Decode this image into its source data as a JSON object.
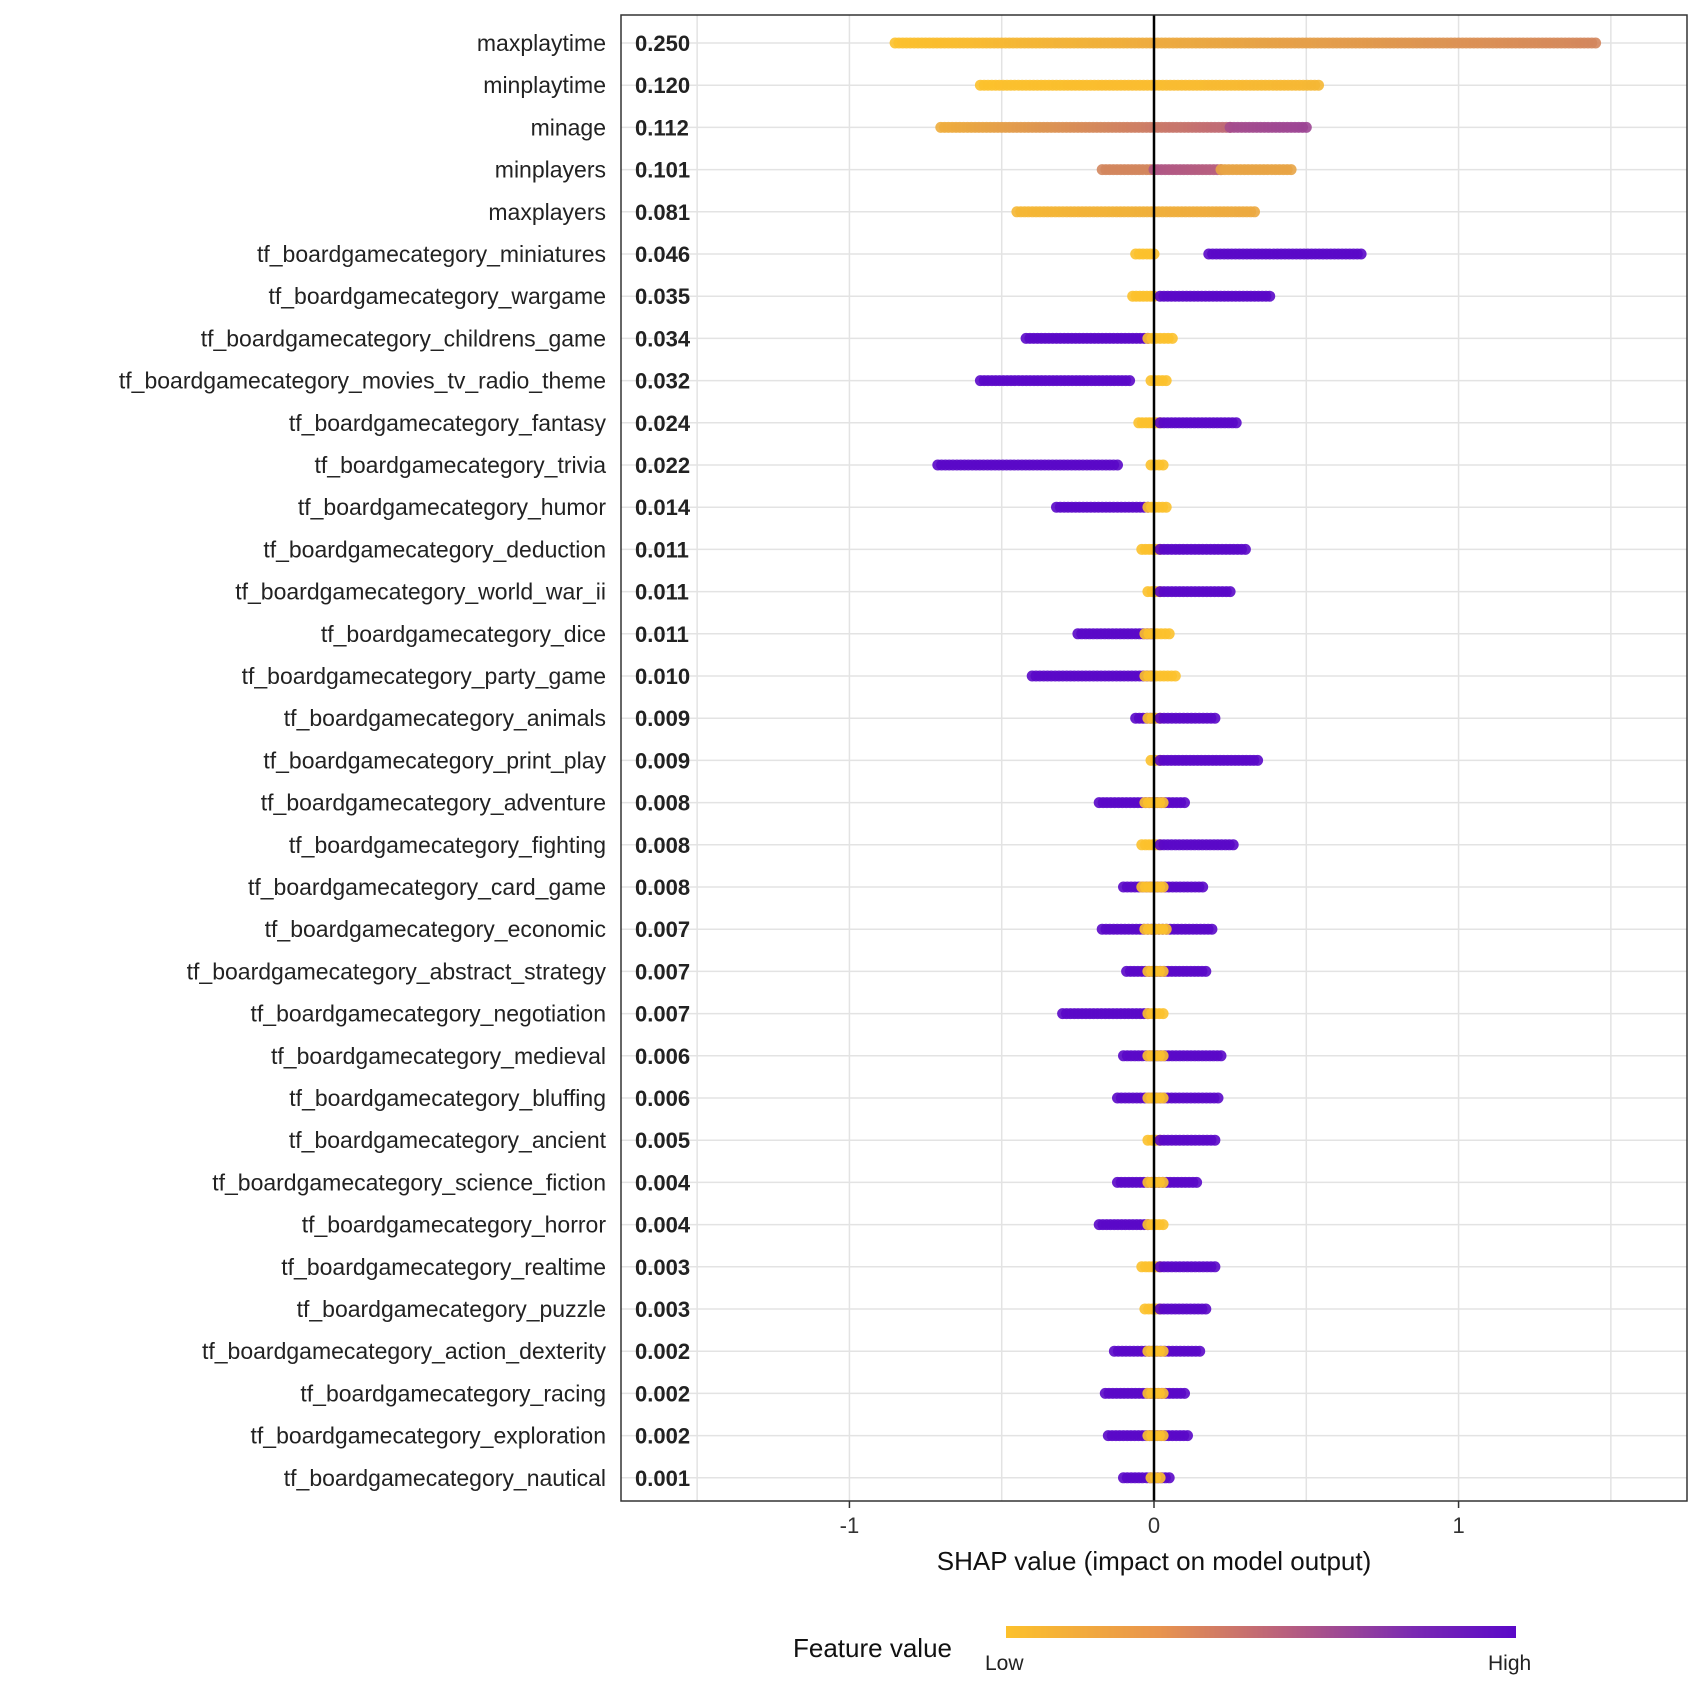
{
  "chart_data": {
    "type": "scatter",
    "xlabel": "SHAP value (impact on model output)",
    "xlim": [
      -1.75,
      1.75
    ],
    "x_ticks": [
      -1,
      0,
      1
    ],
    "x_tick_labels": [
      "-1",
      "0",
      "1"
    ],
    "grid": true,
    "legend": {
      "title": "Feature value",
      "low_label": "Low",
      "high_label": "High",
      "low_color": "#FCC12C",
      "high_color": "#5A08C8",
      "placement": "bottom"
    },
    "features": [
      {
        "name": "maxplaytime",
        "importance": "0.250",
        "segments": [
          {
            "x0": -0.85,
            "x1": 1.45,
            "c0": 0.0,
            "c1": 0.3
          }
        ]
      },
      {
        "name": "minplaytime",
        "importance": "0.120",
        "segments": [
          {
            "x0": -0.57,
            "x1": 0.54,
            "c0": 0.0,
            "c1": 0.05
          }
        ]
      },
      {
        "name": "minage",
        "importance": "0.112",
        "segments": [
          {
            "x0": -0.7,
            "x1": 0.25,
            "c0": 0.1,
            "c1": 0.45
          },
          {
            "x0": 0.25,
            "x1": 0.5,
            "c0": 0.6,
            "c1": 0.65
          }
        ]
      },
      {
        "name": "minplayers",
        "importance": "0.101",
        "segments": [
          {
            "x0": -0.17,
            "x1": 0.0,
            "c0": 0.3,
            "c1": 0.3
          },
          {
            "x0": 0.0,
            "x1": 0.22,
            "c0": 0.55,
            "c1": 0.5
          },
          {
            "x0": 0.22,
            "x1": 0.45,
            "c0": 0.15,
            "c1": 0.15
          }
        ]
      },
      {
        "name": "maxplayers",
        "importance": "0.081",
        "segments": [
          {
            "x0": -0.45,
            "x1": 0.33,
            "c0": 0.05,
            "c1": 0.12
          }
        ]
      },
      {
        "name": "tf_boardgamecategory_miniatures",
        "importance": "0.046",
        "segments": [
          {
            "x0": -0.06,
            "x1": 0.0,
            "c0": 0.0,
            "c1": 0.0
          },
          {
            "x0": 0.18,
            "x1": 0.68,
            "c0": 1.0,
            "c1": 1.0
          }
        ]
      },
      {
        "name": "tf_boardgamecategory_wargame",
        "importance": "0.035",
        "segments": [
          {
            "x0": -0.07,
            "x1": 0.0,
            "c0": 0.0,
            "c1": 0.0
          },
          {
            "x0": 0.02,
            "x1": 0.38,
            "c0": 1.0,
            "c1": 1.0
          }
        ]
      },
      {
        "name": "tf_boardgamecategory_childrens_game",
        "importance": "0.034",
        "segments": [
          {
            "x0": -0.42,
            "x1": -0.02,
            "c0": 1.0,
            "c1": 1.0
          },
          {
            "x0": -0.02,
            "x1": 0.06,
            "c0": 0.0,
            "c1": 0.0
          }
        ]
      },
      {
        "name": "tf_boardgamecategory_movies_tv_radio_theme",
        "importance": "0.032",
        "segments": [
          {
            "x0": -0.57,
            "x1": -0.08,
            "c0": 1.0,
            "c1": 1.0
          },
          {
            "x0": -0.01,
            "x1": 0.04,
            "c0": 0.0,
            "c1": 0.0
          }
        ]
      },
      {
        "name": "tf_boardgamecategory_fantasy",
        "importance": "0.024",
        "segments": [
          {
            "x0": -0.05,
            "x1": 0.02,
            "c0": 0.0,
            "c1": 0.0
          },
          {
            "x0": 0.02,
            "x1": 0.27,
            "c0": 1.0,
            "c1": 1.0
          }
        ]
      },
      {
        "name": "tf_boardgamecategory_trivia",
        "importance": "0.022",
        "segments": [
          {
            "x0": -0.71,
            "x1": -0.12,
            "c0": 1.0,
            "c1": 1.0
          },
          {
            "x0": -0.01,
            "x1": 0.03,
            "c0": 0.0,
            "c1": 0.0
          }
        ]
      },
      {
        "name": "tf_boardgamecategory_humor",
        "importance": "0.014",
        "segments": [
          {
            "x0": -0.32,
            "x1": -0.02,
            "c0": 1.0,
            "c1": 1.0
          },
          {
            "x0": -0.02,
            "x1": 0.04,
            "c0": 0.0,
            "c1": 0.0
          }
        ]
      },
      {
        "name": "tf_boardgamecategory_deduction",
        "importance": "0.011",
        "segments": [
          {
            "x0": -0.04,
            "x1": 0.02,
            "c0": 0.0,
            "c1": 0.0
          },
          {
            "x0": 0.02,
            "x1": 0.3,
            "c0": 1.0,
            "c1": 1.0
          }
        ]
      },
      {
        "name": "tf_boardgamecategory_world_war_ii",
        "importance": "0.011",
        "segments": [
          {
            "x0": -0.02,
            "x1": 0.02,
            "c0": 0.0,
            "c1": 0.0
          },
          {
            "x0": 0.02,
            "x1": 0.25,
            "c0": 1.0,
            "c1": 1.0
          }
        ]
      },
      {
        "name": "tf_boardgamecategory_dice",
        "importance": "0.011",
        "segments": [
          {
            "x0": -0.25,
            "x1": -0.01,
            "c0": 1.0,
            "c1": 1.0
          },
          {
            "x0": -0.03,
            "x1": 0.05,
            "c0": 0.0,
            "c1": 0.0
          }
        ]
      },
      {
        "name": "tf_boardgamecategory_party_game",
        "importance": "0.010",
        "segments": [
          {
            "x0": -0.4,
            "x1": -0.01,
            "c0": 1.0,
            "c1": 1.0
          },
          {
            "x0": -0.03,
            "x1": 0.07,
            "c0": 0.0,
            "c1": 0.0
          }
        ]
      },
      {
        "name": "tf_boardgamecategory_animals",
        "importance": "0.009",
        "segments": [
          {
            "x0": -0.06,
            "x1": 0.0,
            "c0": 1.0,
            "c1": 1.0
          },
          {
            "x0": -0.02,
            "x1": 0.02,
            "c0": 0.0,
            "c1": 0.0
          },
          {
            "x0": 0.02,
            "x1": 0.2,
            "c0": 1.0,
            "c1": 1.0
          }
        ]
      },
      {
        "name": "tf_boardgamecategory_print_play",
        "importance": "0.009",
        "segments": [
          {
            "x0": -0.01,
            "x1": 0.02,
            "c0": 0.0,
            "c1": 0.0
          },
          {
            "x0": 0.02,
            "x1": 0.34,
            "c0": 1.0,
            "c1": 1.0
          }
        ]
      },
      {
        "name": "tf_boardgamecategory_adventure",
        "importance": "0.008",
        "segments": [
          {
            "x0": -0.18,
            "x1": 0.1,
            "c0": 1.0,
            "c1": 1.0
          },
          {
            "x0": -0.03,
            "x1": 0.03,
            "c0": 0.0,
            "c1": 0.0
          }
        ]
      },
      {
        "name": "tf_boardgamecategory_fighting",
        "importance": "0.008",
        "segments": [
          {
            "x0": -0.04,
            "x1": 0.02,
            "c0": 0.0,
            "c1": 0.0
          },
          {
            "x0": 0.02,
            "x1": 0.26,
            "c0": 1.0,
            "c1": 1.0
          }
        ]
      },
      {
        "name": "tf_boardgamecategory_card_game",
        "importance": "0.008",
        "segments": [
          {
            "x0": -0.1,
            "x1": 0.16,
            "c0": 1.0,
            "c1": 1.0
          },
          {
            "x0": -0.04,
            "x1": 0.03,
            "c0": 0.0,
            "c1": 0.0
          }
        ]
      },
      {
        "name": "tf_boardgamecategory_economic",
        "importance": "0.007",
        "segments": [
          {
            "x0": -0.17,
            "x1": 0.19,
            "c0": 1.0,
            "c1": 1.0
          },
          {
            "x0": -0.03,
            "x1": 0.04,
            "c0": 0.0,
            "c1": 0.0
          }
        ]
      },
      {
        "name": "tf_boardgamecategory_abstract_strategy",
        "importance": "0.007",
        "segments": [
          {
            "x0": -0.09,
            "x1": 0.17,
            "c0": 1.0,
            "c1": 1.0
          },
          {
            "x0": -0.02,
            "x1": 0.03,
            "c0": 0.0,
            "c1": 0.0
          }
        ]
      },
      {
        "name": "tf_boardgamecategory_negotiation",
        "importance": "0.007",
        "segments": [
          {
            "x0": -0.3,
            "x1": -0.02,
            "c0": 1.0,
            "c1": 1.0
          },
          {
            "x0": -0.02,
            "x1": 0.03,
            "c0": 0.0,
            "c1": 0.0
          }
        ]
      },
      {
        "name": "tf_boardgamecategory_medieval",
        "importance": "0.006",
        "segments": [
          {
            "x0": -0.1,
            "x1": 0.22,
            "c0": 1.0,
            "c1": 1.0
          },
          {
            "x0": -0.02,
            "x1": 0.03,
            "c0": 0.0,
            "c1": 0.0
          }
        ]
      },
      {
        "name": "tf_boardgamecategory_bluffing",
        "importance": "0.006",
        "segments": [
          {
            "x0": -0.12,
            "x1": 0.21,
            "c0": 1.0,
            "c1": 1.0
          },
          {
            "x0": -0.02,
            "x1": 0.03,
            "c0": 0.0,
            "c1": 0.0
          }
        ]
      },
      {
        "name": "tf_boardgamecategory_ancient",
        "importance": "0.005",
        "segments": [
          {
            "x0": -0.02,
            "x1": 0.02,
            "c0": 0.0,
            "c1": 0.0
          },
          {
            "x0": 0.02,
            "x1": 0.2,
            "c0": 1.0,
            "c1": 1.0
          }
        ]
      },
      {
        "name": "tf_boardgamecategory_science_fiction",
        "importance": "0.004",
        "segments": [
          {
            "x0": -0.12,
            "x1": 0.14,
            "c0": 1.0,
            "c1": 1.0
          },
          {
            "x0": -0.02,
            "x1": 0.03,
            "c0": 0.0,
            "c1": 0.0
          }
        ]
      },
      {
        "name": "tf_boardgamecategory_horror",
        "importance": "0.004",
        "segments": [
          {
            "x0": -0.18,
            "x1": -0.02,
            "c0": 1.0,
            "c1": 1.0
          },
          {
            "x0": -0.02,
            "x1": 0.03,
            "c0": 0.0,
            "c1": 0.0
          }
        ]
      },
      {
        "name": "tf_boardgamecategory_realtime",
        "importance": "0.003",
        "segments": [
          {
            "x0": -0.04,
            "x1": 0.02,
            "c0": 0.0,
            "c1": 0.0
          },
          {
            "x0": 0.02,
            "x1": 0.2,
            "c0": 1.0,
            "c1": 1.0
          }
        ]
      },
      {
        "name": "tf_boardgamecategory_puzzle",
        "importance": "0.003",
        "segments": [
          {
            "x0": -0.03,
            "x1": 0.02,
            "c0": 0.0,
            "c1": 0.0
          },
          {
            "x0": 0.02,
            "x1": 0.17,
            "c0": 1.0,
            "c1": 1.0
          }
        ]
      },
      {
        "name": "tf_boardgamecategory_action_dexterity",
        "importance": "0.002",
        "segments": [
          {
            "x0": -0.13,
            "x1": 0.15,
            "c0": 1.0,
            "c1": 1.0
          },
          {
            "x0": -0.02,
            "x1": 0.03,
            "c0": 0.0,
            "c1": 0.0
          }
        ]
      },
      {
        "name": "tf_boardgamecategory_racing",
        "importance": "0.002",
        "segments": [
          {
            "x0": -0.16,
            "x1": 0.1,
            "c0": 1.0,
            "c1": 1.0
          },
          {
            "x0": -0.02,
            "x1": 0.03,
            "c0": 0.0,
            "c1": 0.0
          }
        ]
      },
      {
        "name": "tf_boardgamecategory_exploration",
        "importance": "0.002",
        "segments": [
          {
            "x0": -0.15,
            "x1": 0.11,
            "c0": 1.0,
            "c1": 1.0
          },
          {
            "x0": -0.02,
            "x1": 0.03,
            "c0": 0.0,
            "c1": 0.0
          }
        ]
      },
      {
        "name": "tf_boardgamecategory_nautical",
        "importance": "0.001",
        "segments": [
          {
            "x0": -0.1,
            "x1": 0.05,
            "c0": 1.0,
            "c1": 1.0
          },
          {
            "x0": -0.01,
            "x1": 0.02,
            "c0": 0.0,
            "c1": 0.0
          }
        ]
      }
    ]
  }
}
